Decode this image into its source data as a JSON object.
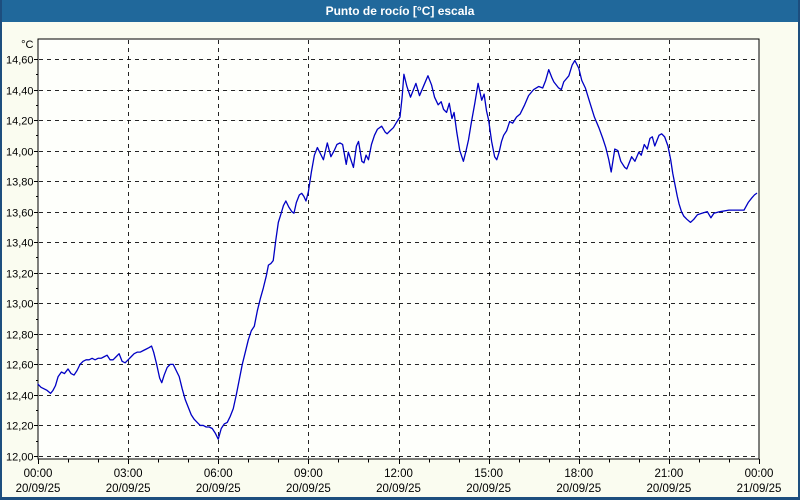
{
  "window": {
    "title": "Punto de rocío [°C] escala"
  },
  "colors": {
    "title_bar": "#20689B",
    "title_text": "#FFFFFF",
    "frame_border": "#1D4E7E",
    "background": "#FAFCF0",
    "plot_background": "#FEFFFB",
    "grid": "#000000",
    "axis_text": "#000000",
    "line": "#0000C4"
  },
  "chart_data": {
    "type": "line",
    "title": "Punto de rocío [°C] escala",
    "ylabel": "°C",
    "ylim": [
      12.0,
      14.73
    ],
    "xlim_hours": [
      0,
      24
    ],
    "grid": "dashed",
    "legend_position": "none",
    "y_ticks": [
      {
        "v": 14.6,
        "label": "14,60"
      },
      {
        "v": 14.4,
        "label": "14,40"
      },
      {
        "v": 14.2,
        "label": "14,20"
      },
      {
        "v": 14.0,
        "label": "14,00"
      },
      {
        "v": 13.8,
        "label": "13,80"
      },
      {
        "v": 13.6,
        "label": "13,60"
      },
      {
        "v": 13.4,
        "label": "13,40"
      },
      {
        "v": 13.2,
        "label": "13,20"
      },
      {
        "v": 13.0,
        "label": "13,00"
      },
      {
        "v": 12.8,
        "label": "12,80"
      },
      {
        "v": 12.6,
        "label": "12,60"
      },
      {
        "v": 12.4,
        "label": "12,40"
      },
      {
        "v": 12.2,
        "label": "12,20"
      },
      {
        "v": 12.0,
        "label": "12,00"
      }
    ],
    "x_ticks": [
      {
        "h": 0,
        "time": "00:00",
        "date": "20/09/25"
      },
      {
        "h": 3,
        "time": "03:00",
        "date": "20/09/25"
      },
      {
        "h": 6,
        "time": "06:00",
        "date": "20/09/25"
      },
      {
        "h": 9,
        "time": "09:00",
        "date": "20/09/25"
      },
      {
        "h": 12,
        "time": "12:00",
        "date": "20/09/25"
      },
      {
        "h": 15,
        "time": "15:00",
        "date": "20/09/25"
      },
      {
        "h": 18,
        "time": "18:00",
        "date": "20/09/25"
      },
      {
        "h": 21,
        "time": "21:00",
        "date": "20/09/25"
      },
      {
        "h": 24,
        "time": "00:00",
        "date": "21/09/25"
      }
    ],
    "series": [
      {
        "name": "Punto de rocío",
        "color": "#0000C4",
        "points": [
          [
            0.0,
            12.47
          ],
          [
            0.1,
            12.45
          ],
          [
            0.2,
            12.44
          ],
          [
            0.3,
            12.43
          ],
          [
            0.42,
            12.41
          ],
          [
            0.5,
            12.43
          ],
          [
            0.58,
            12.46
          ],
          [
            0.67,
            12.52
          ],
          [
            0.78,
            12.55
          ],
          [
            0.88,
            12.54
          ],
          [
            1.0,
            12.57
          ],
          [
            1.1,
            12.54
          ],
          [
            1.2,
            12.53
          ],
          [
            1.3,
            12.56
          ],
          [
            1.4,
            12.6
          ],
          [
            1.5,
            12.62
          ],
          [
            1.6,
            12.63
          ],
          [
            1.7,
            12.63
          ],
          [
            1.8,
            12.64
          ],
          [
            1.9,
            12.63
          ],
          [
            2.0,
            12.64
          ],
          [
            2.1,
            12.64
          ],
          [
            2.2,
            12.65
          ],
          [
            2.3,
            12.66
          ],
          [
            2.4,
            12.63
          ],
          [
            2.5,
            12.63
          ],
          [
            2.6,
            12.65
          ],
          [
            2.7,
            12.67
          ],
          [
            2.8,
            12.62
          ],
          [
            2.9,
            12.61
          ],
          [
            3.0,
            12.63
          ],
          [
            3.1,
            12.65
          ],
          [
            3.2,
            12.67
          ],
          [
            3.3,
            12.68
          ],
          [
            3.4,
            12.68
          ],
          [
            3.5,
            12.69
          ],
          [
            3.6,
            12.7
          ],
          [
            3.7,
            12.71
          ],
          [
            3.78,
            12.72
          ],
          [
            3.85,
            12.68
          ],
          [
            3.95,
            12.6
          ],
          [
            4.05,
            12.51
          ],
          [
            4.12,
            12.48
          ],
          [
            4.2,
            12.53
          ],
          [
            4.3,
            12.58
          ],
          [
            4.4,
            12.6
          ],
          [
            4.5,
            12.6
          ],
          [
            4.6,
            12.56
          ],
          [
            4.7,
            12.52
          ],
          [
            4.8,
            12.44
          ],
          [
            4.9,
            12.37
          ],
          [
            5.0,
            12.32
          ],
          [
            5.1,
            12.27
          ],
          [
            5.2,
            12.24
          ],
          [
            5.3,
            12.22
          ],
          [
            5.4,
            12.2
          ],
          [
            5.5,
            12.2
          ],
          [
            5.6,
            12.19
          ],
          [
            5.7,
            12.19
          ],
          [
            5.8,
            12.18
          ],
          [
            5.9,
            12.15
          ],
          [
            6.0,
            12.11
          ],
          [
            6.1,
            12.18
          ],
          [
            6.2,
            12.21
          ],
          [
            6.3,
            12.22
          ],
          [
            6.4,
            12.26
          ],
          [
            6.5,
            12.31
          ],
          [
            6.6,
            12.4
          ],
          [
            6.7,
            12.5
          ],
          [
            6.8,
            12.6
          ],
          [
            6.9,
            12.68
          ],
          [
            7.0,
            12.76
          ],
          [
            7.1,
            12.82
          ],
          [
            7.2,
            12.85
          ],
          [
            7.3,
            12.95
          ],
          [
            7.4,
            13.03
          ],
          [
            7.5,
            13.1
          ],
          [
            7.6,
            13.18
          ],
          [
            7.67,
            13.25
          ],
          [
            7.75,
            13.26
          ],
          [
            7.83,
            13.28
          ],
          [
            7.92,
            13.42
          ],
          [
            8.0,
            13.53
          ],
          [
            8.08,
            13.58
          ],
          [
            8.17,
            13.64
          ],
          [
            8.25,
            13.67
          ],
          [
            8.35,
            13.63
          ],
          [
            8.45,
            13.6
          ],
          [
            8.52,
            13.59
          ],
          [
            8.6,
            13.66
          ],
          [
            8.7,
            13.71
          ],
          [
            8.78,
            13.72
          ],
          [
            8.85,
            13.7
          ],
          [
            8.92,
            13.67
          ],
          [
            9.0,
            13.73
          ],
          [
            9.1,
            13.86
          ],
          [
            9.2,
            13.97
          ],
          [
            9.3,
            14.02
          ],
          [
            9.4,
            13.98
          ],
          [
            9.5,
            13.94
          ],
          [
            9.63,
            14.05
          ],
          [
            9.75,
            13.96
          ],
          [
            9.86,
            14.0
          ],
          [
            9.95,
            14.04
          ],
          [
            10.05,
            14.05
          ],
          [
            10.14,
            14.04
          ],
          [
            10.26,
            13.91
          ],
          [
            10.33,
            13.99
          ],
          [
            10.5,
            13.89
          ],
          [
            10.6,
            14.03
          ],
          [
            10.67,
            14.06
          ],
          [
            10.78,
            13.93
          ],
          [
            10.85,
            13.92
          ],
          [
            10.92,
            13.97
          ],
          [
            11.0,
            13.94
          ],
          [
            11.1,
            14.04
          ],
          [
            11.2,
            14.1
          ],
          [
            11.3,
            14.14
          ],
          [
            11.44,
            14.16
          ],
          [
            11.56,
            14.12
          ],
          [
            11.62,
            14.11
          ],
          [
            11.72,
            14.13
          ],
          [
            11.83,
            14.15
          ],
          [
            11.95,
            14.19
          ],
          [
            12.05,
            14.22
          ],
          [
            12.12,
            14.35
          ],
          [
            12.18,
            14.5
          ],
          [
            12.28,
            14.42
          ],
          [
            12.4,
            14.35
          ],
          [
            12.5,
            14.4
          ],
          [
            12.58,
            14.44
          ],
          [
            12.7,
            14.36
          ],
          [
            12.85,
            14.43
          ],
          [
            12.98,
            14.49
          ],
          [
            13.1,
            14.43
          ],
          [
            13.2,
            14.35
          ],
          [
            13.32,
            14.3
          ],
          [
            13.42,
            14.32
          ],
          [
            13.5,
            14.27
          ],
          [
            13.6,
            14.25
          ],
          [
            13.69,
            14.31
          ],
          [
            13.78,
            14.21
          ],
          [
            13.85,
            14.25
          ],
          [
            13.94,
            14.12
          ],
          [
            14.04,
            14.0
          ],
          [
            14.16,
            13.93
          ],
          [
            14.25,
            14.0
          ],
          [
            14.33,
            14.07
          ],
          [
            14.43,
            14.19
          ],
          [
            14.54,
            14.31
          ],
          [
            14.65,
            14.44
          ],
          [
            14.77,
            14.33
          ],
          [
            14.85,
            14.37
          ],
          [
            14.93,
            14.26
          ],
          [
            15.0,
            14.2
          ],
          [
            15.1,
            14.06
          ],
          [
            15.2,
            13.96
          ],
          [
            15.27,
            13.94
          ],
          [
            15.35,
            13.99
          ],
          [
            15.43,
            14.06
          ],
          [
            15.5,
            14.1
          ],
          [
            15.6,
            14.13
          ],
          [
            15.7,
            14.19
          ],
          [
            15.8,
            14.18
          ],
          [
            15.93,
            14.22
          ],
          [
            16.05,
            14.24
          ],
          [
            16.2,
            14.3
          ],
          [
            16.33,
            14.36
          ],
          [
            16.5,
            14.4
          ],
          [
            16.67,
            14.42
          ],
          [
            16.8,
            14.41
          ],
          [
            16.9,
            14.46
          ],
          [
            17.0,
            14.53
          ],
          [
            17.1,
            14.48
          ],
          [
            17.17,
            14.45
          ],
          [
            17.33,
            14.41
          ],
          [
            17.42,
            14.4
          ],
          [
            17.5,
            14.45
          ],
          [
            17.67,
            14.49
          ],
          [
            17.78,
            14.56
          ],
          [
            17.87,
            14.59
          ],
          [
            18.0,
            14.54
          ],
          [
            18.1,
            14.46
          ],
          [
            18.22,
            14.41
          ],
          [
            18.36,
            14.32
          ],
          [
            18.52,
            14.22
          ],
          [
            18.67,
            14.15
          ],
          [
            18.8,
            14.08
          ],
          [
            18.9,
            14.02
          ],
          [
            19.0,
            13.94
          ],
          [
            19.08,
            13.86
          ],
          [
            19.2,
            14.01
          ],
          [
            19.3,
            14.0
          ],
          [
            19.4,
            13.93
          ],
          [
            19.53,
            13.89
          ],
          [
            19.6,
            13.88
          ],
          [
            19.76,
            13.96
          ],
          [
            19.87,
            13.93
          ],
          [
            20.0,
            13.99
          ],
          [
            20.08,
            13.97
          ],
          [
            20.18,
            14.04
          ],
          [
            20.28,
            14.01
          ],
          [
            20.37,
            14.08
          ],
          [
            20.45,
            14.09
          ],
          [
            20.53,
            14.03
          ],
          [
            20.67,
            14.1
          ],
          [
            20.76,
            14.11
          ],
          [
            20.86,
            14.09
          ],
          [
            20.97,
            14.03
          ],
          [
            21.06,
            13.94
          ],
          [
            21.13,
            13.85
          ],
          [
            21.2,
            13.78
          ],
          [
            21.28,
            13.7
          ],
          [
            21.34,
            13.65
          ],
          [
            21.42,
            13.6
          ],
          [
            21.5,
            13.57
          ],
          [
            21.6,
            13.55
          ],
          [
            21.72,
            13.53
          ],
          [
            21.83,
            13.55
          ],
          [
            21.95,
            13.58
          ],
          [
            22.1,
            13.59
          ],
          [
            22.28,
            13.6
          ],
          [
            22.4,
            13.56
          ],
          [
            22.5,
            13.59
          ],
          [
            22.7,
            13.6
          ],
          [
            23.0,
            13.61
          ],
          [
            23.3,
            13.61
          ],
          [
            23.5,
            13.61
          ],
          [
            23.64,
            13.66
          ],
          [
            23.76,
            13.69
          ],
          [
            23.85,
            13.71
          ],
          [
            23.92,
            13.72
          ]
        ]
      }
    ]
  }
}
